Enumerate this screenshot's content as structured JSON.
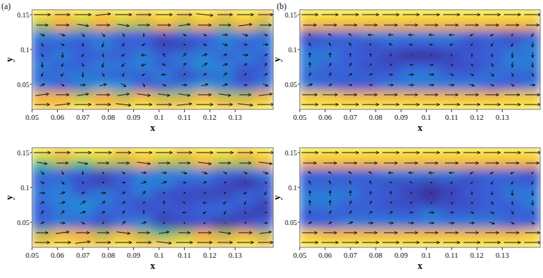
{
  "chart_data": [
    {
      "type": "quiver",
      "title": "(a)",
      "x_label": "x",
      "y_label": "y",
      "xlim": [
        0.05,
        0.145
      ],
      "ylim": [
        0.014,
        0.157
      ],
      "xticks": [
        0.05,
        0.06,
        0.07,
        0.08,
        0.09,
        0.1,
        0.11,
        0.12,
        0.13
      ],
      "yticks": [
        0.05,
        0.1,
        0.15
      ],
      "color_range": [
        0,
        1
      ],
      "x": [
        0.054,
        0.062,
        0.07,
        0.078,
        0.086,
        0.094,
        0.102,
        0.11,
        0.118,
        0.126,
        0.134,
        0.142
      ],
      "y": [
        0.021,
        0.035,
        0.049,
        0.064,
        0.078,
        0.092,
        0.107,
        0.121,
        0.135,
        0.15
      ],
      "u": [
        [
          0.9,
          0.9,
          1.0,
          0.9,
          0.9,
          1.0,
          0.9,
          0.9,
          1.0,
          0.9,
          0.9,
          1.0
        ],
        [
          0.8,
          0.8,
          0.7,
          0.8,
          0.7,
          0.8,
          0.7,
          0.7,
          0.8,
          0.7,
          0.7,
          0.8
        ],
        [
          0.3,
          0.2,
          0.3,
          0.4,
          0.3,
          0.1,
          0.2,
          0.3,
          0.4,
          0.3,
          0.2,
          0.3
        ],
        [
          -0.1,
          -0.2,
          0.0,
          0.1,
          -0.1,
          -0.2,
          -0.3,
          0.1,
          0.2,
          0.2,
          0.1,
          0.2
        ],
        [
          0.0,
          -0.1,
          0.1,
          -0.1,
          -0.2,
          -0.3,
          -0.2,
          0.2,
          0.3,
          0.3,
          0.2,
          0.1
        ],
        [
          0.1,
          0.0,
          -0.1,
          0.0,
          -0.2,
          -0.3,
          -0.1,
          0.2,
          0.3,
          0.2,
          0.3,
          0.2
        ],
        [
          0.1,
          0.2,
          0.0,
          -0.1,
          -0.1,
          -0.2,
          0.0,
          0.1,
          0.2,
          0.3,
          0.2,
          0.3
        ],
        [
          0.3,
          0.3,
          0.2,
          0.2,
          0.1,
          0.0,
          0.1,
          0.2,
          0.2,
          0.3,
          0.3,
          0.2
        ],
        [
          0.7,
          0.8,
          0.7,
          0.8,
          0.7,
          0.7,
          0.8,
          0.7,
          0.8,
          0.7,
          0.8,
          0.7
        ],
        [
          1.0,
          0.9,
          1.0,
          0.9,
          1.0,
          0.9,
          1.0,
          0.9,
          1.0,
          0.9,
          1.0,
          0.9
        ]
      ],
      "v": [
        [
          0.0,
          0.1,
          0.0,
          0.0,
          -0.1,
          0.0,
          0.0,
          0.1,
          0.0,
          0.0,
          -0.1,
          0.0
        ],
        [
          0.1,
          0.0,
          0.1,
          0.0,
          0.1,
          -0.1,
          -0.1,
          -0.1,
          0.0,
          -0.1,
          0.0,
          0.1
        ],
        [
          0.1,
          -0.1,
          0.0,
          0.1,
          -0.2,
          -0.2,
          -0.1,
          0.0,
          0.1,
          0.1,
          0.0,
          -0.1
        ],
        [
          -0.2,
          -0.2,
          -0.3,
          -0.2,
          -0.2,
          -0.1,
          0.0,
          0.1,
          0.1,
          0.2,
          0.1,
          0.1
        ],
        [
          -0.3,
          -0.2,
          -0.2,
          -0.3,
          -0.2,
          -0.1,
          0.1,
          0.2,
          0.2,
          0.1,
          0.1,
          0.2
        ],
        [
          -0.2,
          -0.3,
          -0.2,
          -0.2,
          -0.1,
          0.0,
          0.2,
          0.2,
          0.1,
          0.1,
          0.0,
          0.1
        ],
        [
          -0.2,
          -0.1,
          -0.2,
          -0.3,
          -0.2,
          -0.1,
          0.1,
          0.0,
          -0.1,
          -0.1,
          0.0,
          0.0
        ],
        [
          -0.1,
          -0.1,
          -0.2,
          -0.2,
          -0.2,
          -0.2,
          -0.1,
          -0.1,
          -0.1,
          0.0,
          -0.1,
          -0.1
        ],
        [
          0.0,
          0.0,
          -0.1,
          0.0,
          -0.1,
          0.0,
          0.0,
          0.1,
          0.0,
          0.0,
          0.1,
          0.0
        ],
        [
          0.0,
          0.0,
          0.0,
          0.1,
          0.0,
          0.0,
          0.0,
          0.0,
          -0.1,
          0.0,
          0.0,
          0.0
        ]
      ]
    },
    {
      "type": "quiver",
      "title": "(b)",
      "x_label": "x",
      "y_label": "y",
      "xlim": [
        0.05,
        0.145
      ],
      "ylim": [
        0.014,
        0.157
      ],
      "xticks": [
        0.05,
        0.06,
        0.07,
        0.08,
        0.09,
        0.1,
        0.11,
        0.12,
        0.13
      ],
      "yticks": [
        0.05,
        0.1,
        0.15
      ],
      "color_range": [
        0,
        1
      ],
      "x": [
        0.054,
        0.062,
        0.07,
        0.078,
        0.086,
        0.094,
        0.102,
        0.11,
        0.118,
        0.126,
        0.134,
        0.142
      ],
      "y": [
        0.021,
        0.035,
        0.049,
        0.064,
        0.078,
        0.092,
        0.107,
        0.121,
        0.135,
        0.15
      ],
      "u": [
        [
          1.0,
          1.0,
          1.0,
          1.0,
          1.0,
          1.0,
          1.0,
          1.0,
          1.0,
          1.0,
          1.0,
          1.0
        ],
        [
          0.9,
          0.9,
          0.8,
          0.8,
          0.8,
          0.8,
          0.8,
          0.8,
          0.8,
          0.8,
          0.9,
          0.9
        ],
        [
          0.3,
          0.2,
          0.2,
          0.2,
          0.3,
          0.3,
          0.3,
          0.3,
          0.3,
          0.2,
          0.2,
          0.3
        ],
        [
          0.1,
          0.1,
          0.2,
          0.2,
          0.2,
          0.3,
          0.3,
          0.2,
          0.2,
          0.2,
          0.1,
          0.1
        ],
        [
          0.0,
          0.1,
          0.1,
          0.1,
          0.1,
          0.2,
          0.2,
          0.1,
          0.1,
          0.1,
          0.0,
          0.0
        ],
        [
          0.0,
          0.0,
          0.0,
          0.0,
          0.0,
          0.0,
          0.0,
          0.0,
          0.0,
          0.0,
          0.0,
          0.0
        ],
        [
          -0.1,
          -0.1,
          -0.1,
          -0.1,
          -0.2,
          -0.2,
          -0.2,
          -0.2,
          -0.1,
          -0.1,
          -0.1,
          0.0
        ],
        [
          -0.1,
          -0.2,
          -0.2,
          -0.3,
          -0.3,
          -0.3,
          -0.3,
          -0.3,
          -0.2,
          -0.2,
          -0.1,
          -0.1
        ],
        [
          0.8,
          0.8,
          0.8,
          0.8,
          0.8,
          0.8,
          0.8,
          0.8,
          0.8,
          0.8,
          0.8,
          0.8
        ],
        [
          1.0,
          1.0,
          1.0,
          1.0,
          1.0,
          1.0,
          1.0,
          1.0,
          1.0,
          1.0,
          1.0,
          1.0
        ]
      ],
      "v": [
        [
          0.0,
          0.0,
          0.0,
          0.0,
          0.0,
          0.0,
          0.0,
          0.0,
          0.0,
          0.0,
          0.0,
          0.0
        ],
        [
          0.0,
          0.0,
          0.0,
          0.0,
          0.0,
          0.0,
          0.0,
          0.0,
          0.0,
          0.0,
          0.0,
          0.0
        ],
        [
          0.1,
          0.1,
          0.0,
          0.0,
          0.0,
          0.0,
          0.0,
          0.0,
          -0.1,
          -0.1,
          -0.1,
          0.0
        ],
        [
          0.2,
          0.2,
          0.1,
          0.1,
          0.0,
          0.0,
          0.0,
          -0.1,
          -0.1,
          -0.2,
          -0.2,
          -0.2
        ],
        [
          0.3,
          0.2,
          0.2,
          0.1,
          0.1,
          0.0,
          0.0,
          -0.1,
          -0.1,
          -0.2,
          -0.3,
          -0.3
        ],
        [
          0.3,
          0.3,
          0.2,
          0.2,
          0.1,
          0.0,
          0.0,
          -0.1,
          -0.2,
          -0.2,
          -0.3,
          -0.3
        ],
        [
          0.2,
          0.2,
          0.2,
          0.1,
          0.1,
          0.0,
          0.0,
          -0.1,
          -0.1,
          -0.2,
          -0.2,
          -0.3
        ],
        [
          0.1,
          0.1,
          0.1,
          0.0,
          0.0,
          0.0,
          0.0,
          0.0,
          -0.1,
          -0.1,
          -0.1,
          -0.2
        ],
        [
          0.0,
          0.0,
          0.0,
          0.0,
          0.0,
          0.0,
          0.0,
          0.0,
          0.0,
          0.0,
          0.0,
          0.0
        ],
        [
          0.0,
          0.0,
          0.0,
          0.0,
          0.0,
          0.0,
          0.0,
          0.0,
          0.0,
          0.0,
          0.0,
          0.0
        ]
      ]
    },
    {
      "type": "quiver",
      "x_label": "x",
      "y_label": "y",
      "xlim": [
        0.05,
        0.145
      ],
      "ylim": [
        0.014,
        0.157
      ],
      "xticks": [
        0.05,
        0.06,
        0.07,
        0.08,
        0.09,
        0.1,
        0.11,
        0.12,
        0.13
      ],
      "yticks": [
        0.05,
        0.1,
        0.15
      ],
      "color_range": [
        0,
        1
      ],
      "x": [
        0.054,
        0.062,
        0.07,
        0.078,
        0.086,
        0.094,
        0.102,
        0.11,
        0.118,
        0.126,
        0.134,
        0.142
      ],
      "y": [
        0.021,
        0.035,
        0.049,
        0.064,
        0.078,
        0.092,
        0.107,
        0.121,
        0.135,
        0.15
      ],
      "u": [
        [
          0.9,
          1.0,
          0.9,
          0.9,
          1.0,
          0.9,
          0.9,
          1.0,
          0.9,
          0.9,
          1.0,
          0.9
        ],
        [
          0.7,
          0.8,
          0.8,
          0.7,
          0.8,
          0.7,
          0.6,
          0.7,
          0.8,
          0.7,
          0.8,
          0.7
        ],
        [
          0.2,
          0.3,
          0.2,
          0.1,
          0.2,
          0.3,
          0.1,
          0.0,
          -0.1,
          0.0,
          0.1,
          0.2
        ],
        [
          0.1,
          0.2,
          0.3,
          0.2,
          0.1,
          0.0,
          -0.1,
          -0.2,
          -0.2,
          -0.1,
          0.0,
          0.1
        ],
        [
          0.2,
          0.3,
          0.3,
          0.2,
          0.2,
          0.1,
          0.0,
          -0.1,
          -0.2,
          -0.2,
          -0.1,
          0.0
        ],
        [
          0.3,
          0.3,
          0.2,
          0.3,
          0.2,
          0.2,
          0.1,
          0.1,
          0.0,
          -0.1,
          -0.2,
          -0.1
        ],
        [
          0.2,
          0.2,
          0.1,
          0.1,
          0.2,
          0.3,
          0.3,
          0.2,
          0.2,
          0.1,
          0.0,
          0.1
        ],
        [
          0.2,
          0.1,
          0.0,
          0.1,
          0.2,
          0.3,
          0.3,
          0.3,
          0.3,
          0.2,
          0.2,
          0.3
        ],
        [
          0.6,
          0.7,
          0.6,
          0.7,
          0.7,
          0.8,
          0.7,
          0.7,
          0.8,
          0.7,
          0.7,
          0.8
        ],
        [
          1.0,
          0.9,
          1.0,
          1.0,
          0.9,
          1.0,
          1.0,
          0.9,
          1.0,
          1.0,
          0.9,
          1.0
        ]
      ],
      "v": [
        [
          0.0,
          0.0,
          0.1,
          0.0,
          0.0,
          0.0,
          -0.1,
          0.0,
          0.0,
          0.0,
          0.0,
          0.0
        ],
        [
          0.0,
          0.1,
          0.0,
          0.0,
          -0.1,
          0.0,
          0.1,
          0.0,
          0.0,
          -0.1,
          0.0,
          0.1
        ],
        [
          0.1,
          0.0,
          -0.1,
          0.1,
          0.2,
          0.1,
          0.0,
          -0.1,
          -0.1,
          0.0,
          0.1,
          0.0
        ],
        [
          0.2,
          0.2,
          0.1,
          0.1,
          0.2,
          0.2,
          0.1,
          0.0,
          -0.1,
          -0.2,
          -0.1,
          0.0
        ],
        [
          0.1,
          0.1,
          0.2,
          0.2,
          0.1,
          0.1,
          0.2,
          0.1,
          0.0,
          -0.1,
          -0.2,
          -0.1
        ],
        [
          0.0,
          0.1,
          0.1,
          0.0,
          0.1,
          0.2,
          0.1,
          0.1,
          0.1,
          0.0,
          -0.1,
          -0.2
        ],
        [
          -0.1,
          -0.2,
          -0.1,
          0.0,
          0.0,
          0.1,
          0.1,
          0.0,
          0.1,
          0.1,
          0.0,
          -0.1
        ],
        [
          -0.2,
          -0.2,
          -0.2,
          -0.1,
          -0.1,
          0.0,
          0.0,
          -0.1,
          -0.1,
          -0.1,
          -0.1,
          -0.1
        ],
        [
          -0.1,
          0.0,
          -0.1,
          0.0,
          0.0,
          -0.1,
          0.0,
          0.0,
          -0.1,
          0.0,
          0.0,
          -0.1
        ],
        [
          0.0,
          0.0,
          0.0,
          0.0,
          0.0,
          0.0,
          0.0,
          0.0,
          0.0,
          0.0,
          0.0,
          0.0
        ]
      ]
    },
    {
      "type": "quiver",
      "x_label": "x",
      "y_label": "y",
      "xlim": [
        0.05,
        0.145
      ],
      "ylim": [
        0.014,
        0.157
      ],
      "xticks": [
        0.05,
        0.06,
        0.07,
        0.08,
        0.09,
        0.1,
        0.11,
        0.12,
        0.13
      ],
      "yticks": [
        0.05,
        0.1,
        0.15
      ],
      "color_range": [
        0,
        1
      ],
      "x": [
        0.054,
        0.062,
        0.07,
        0.078,
        0.086,
        0.094,
        0.102,
        0.11,
        0.118,
        0.126,
        0.134,
        0.142
      ],
      "y": [
        0.021,
        0.035,
        0.049,
        0.064,
        0.078,
        0.092,
        0.107,
        0.121,
        0.135,
        0.15
      ],
      "u": [
        [
          1.0,
          1.0,
          1.0,
          1.0,
          1.0,
          1.0,
          1.0,
          1.0,
          1.0,
          1.0,
          1.0,
          1.0
        ],
        [
          0.9,
          0.8,
          0.8,
          0.8,
          0.8,
          0.8,
          0.8,
          0.8,
          0.8,
          0.8,
          0.8,
          0.9
        ],
        [
          0.2,
          0.2,
          0.3,
          0.3,
          0.3,
          0.3,
          0.3,
          0.3,
          0.3,
          0.3,
          0.2,
          0.2
        ],
        [
          0.0,
          0.1,
          0.1,
          0.2,
          0.2,
          0.2,
          0.3,
          0.2,
          0.2,
          0.2,
          0.1,
          0.1
        ],
        [
          0.0,
          0.0,
          0.1,
          0.1,
          0.1,
          0.1,
          0.1,
          0.1,
          0.1,
          0.1,
          0.0,
          0.0
        ],
        [
          0.0,
          0.0,
          0.0,
          0.0,
          0.0,
          0.0,
          0.0,
          0.0,
          0.0,
          0.0,
          0.0,
          0.0
        ],
        [
          -0.1,
          -0.1,
          -0.1,
          -0.1,
          -0.1,
          -0.1,
          -0.1,
          -0.1,
          -0.1,
          -0.1,
          -0.1,
          -0.1
        ],
        [
          -0.2,
          -0.2,
          -0.2,
          -0.2,
          -0.3,
          -0.3,
          -0.3,
          -0.3,
          -0.2,
          -0.2,
          -0.2,
          -0.1
        ],
        [
          0.8,
          0.8,
          0.8,
          0.8,
          0.8,
          0.8,
          0.8,
          0.8,
          0.8,
          0.8,
          0.8,
          0.8
        ],
        [
          1.0,
          1.0,
          1.0,
          1.0,
          1.0,
          1.0,
          1.0,
          1.0,
          1.0,
          1.0,
          1.0,
          1.0
        ]
      ],
      "v": [
        [
          0.0,
          0.0,
          0.0,
          0.0,
          0.0,
          0.0,
          0.0,
          0.0,
          0.0,
          0.0,
          0.0,
          0.0
        ],
        [
          0.0,
          0.0,
          0.0,
          0.0,
          0.0,
          0.0,
          0.0,
          0.0,
          0.0,
          0.0,
          0.0,
          0.0
        ],
        [
          0.1,
          0.1,
          0.1,
          0.0,
          0.0,
          0.0,
          0.0,
          0.0,
          0.0,
          -0.1,
          -0.1,
          -0.1
        ],
        [
          0.2,
          0.2,
          0.2,
          0.1,
          0.1,
          0.0,
          0.0,
          0.0,
          -0.1,
          -0.1,
          -0.2,
          -0.2
        ],
        [
          0.3,
          0.3,
          0.2,
          0.2,
          0.1,
          0.1,
          0.0,
          -0.1,
          -0.1,
          -0.2,
          -0.2,
          -0.3
        ],
        [
          0.3,
          0.3,
          0.3,
          0.2,
          0.2,
          0.1,
          0.0,
          -0.1,
          -0.2,
          -0.2,
          -0.3,
          -0.3
        ],
        [
          0.2,
          0.2,
          0.2,
          0.2,
          0.1,
          0.1,
          0.0,
          -0.1,
          -0.1,
          -0.2,
          -0.2,
          -0.2
        ],
        [
          0.1,
          0.1,
          0.1,
          0.1,
          0.0,
          0.0,
          0.0,
          0.0,
          -0.1,
          -0.1,
          -0.1,
          -0.1
        ],
        [
          0.0,
          0.0,
          0.0,
          0.0,
          0.0,
          0.0,
          0.0,
          0.0,
          0.0,
          0.0,
          0.0,
          0.0
        ],
        [
          0.0,
          0.0,
          0.0,
          0.0,
          0.0,
          0.0,
          0.0,
          0.0,
          0.0,
          0.0,
          0.0,
          0.0
        ]
      ]
    }
  ]
}
